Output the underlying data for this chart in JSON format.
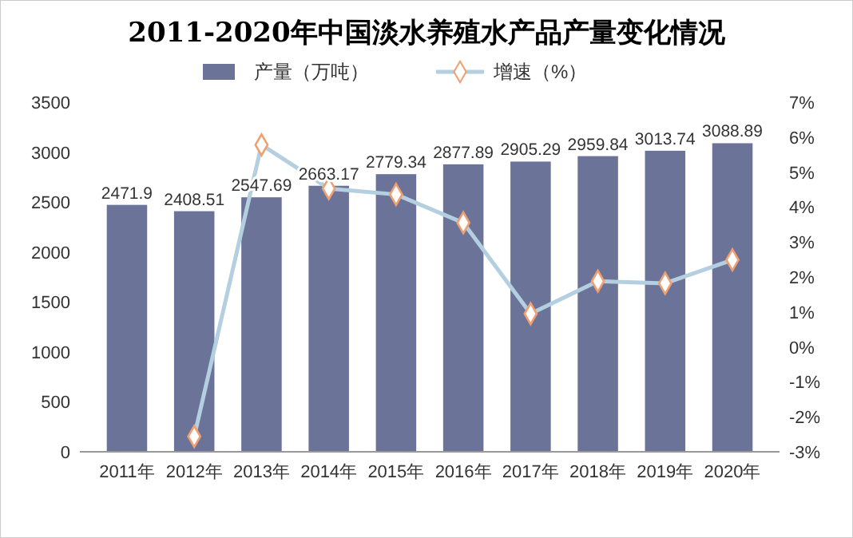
{
  "chart_data": {
    "type": "bar",
    "title": "2011-2020年中国淡水养殖水产品产量变化情况",
    "categories": [
      "2011年",
      "2012年",
      "2013年",
      "2014年",
      "2015年",
      "2016年",
      "2017年",
      "2018年",
      "2019年",
      "2020年"
    ],
    "series": [
      {
        "name": "产量（万吨）",
        "color": "#6b7398",
        "values": [
          2471.9,
          2408.51,
          2547.69,
          2663.17,
          2779.34,
          2877.89,
          2905.29,
          2959.84,
          3013.74,
          3088.89
        ],
        "value_labels": [
          "2471.9",
          "2408.51",
          "2547.69",
          "2663.17",
          "2779.34",
          "2877.89",
          "2905.29",
          "2959.84",
          "3013.74",
          "3088.89"
        ]
      },
      {
        "name": "增速（%）",
        "type": "line",
        "axis": "y2",
        "color": "#b4cfe0",
        "values": [
          null,
          -2.56,
          5.78,
          4.53,
          4.36,
          3.55,
          0.95,
          1.88,
          1.82,
          2.49
        ]
      }
    ],
    "ylim": [
      0,
      3500
    ],
    "yticks": [
      0,
      500,
      1000,
      1500,
      2000,
      2500,
      3000,
      3500
    ],
    "y2lim": [
      -3,
      7
    ],
    "y2ticks": [
      {
        "value": -3,
        "label": "-3%"
      },
      {
        "value": -2,
        "label": "-2%"
      },
      {
        "value": -1,
        "label": "-1%"
      },
      {
        "value": 0,
        "label": "0%"
      },
      {
        "value": 1,
        "label": "1%"
      },
      {
        "value": 2,
        "label": "2%"
      },
      {
        "value": 3,
        "label": "3%"
      },
      {
        "value": 4,
        "label": "4%"
      },
      {
        "value": 5,
        "label": "5%"
      },
      {
        "value": 6,
        "label": "6%"
      },
      {
        "value": 7,
        "label": "7%"
      }
    ],
    "legend": "top",
    "marker": "diamond",
    "grid": false
  }
}
